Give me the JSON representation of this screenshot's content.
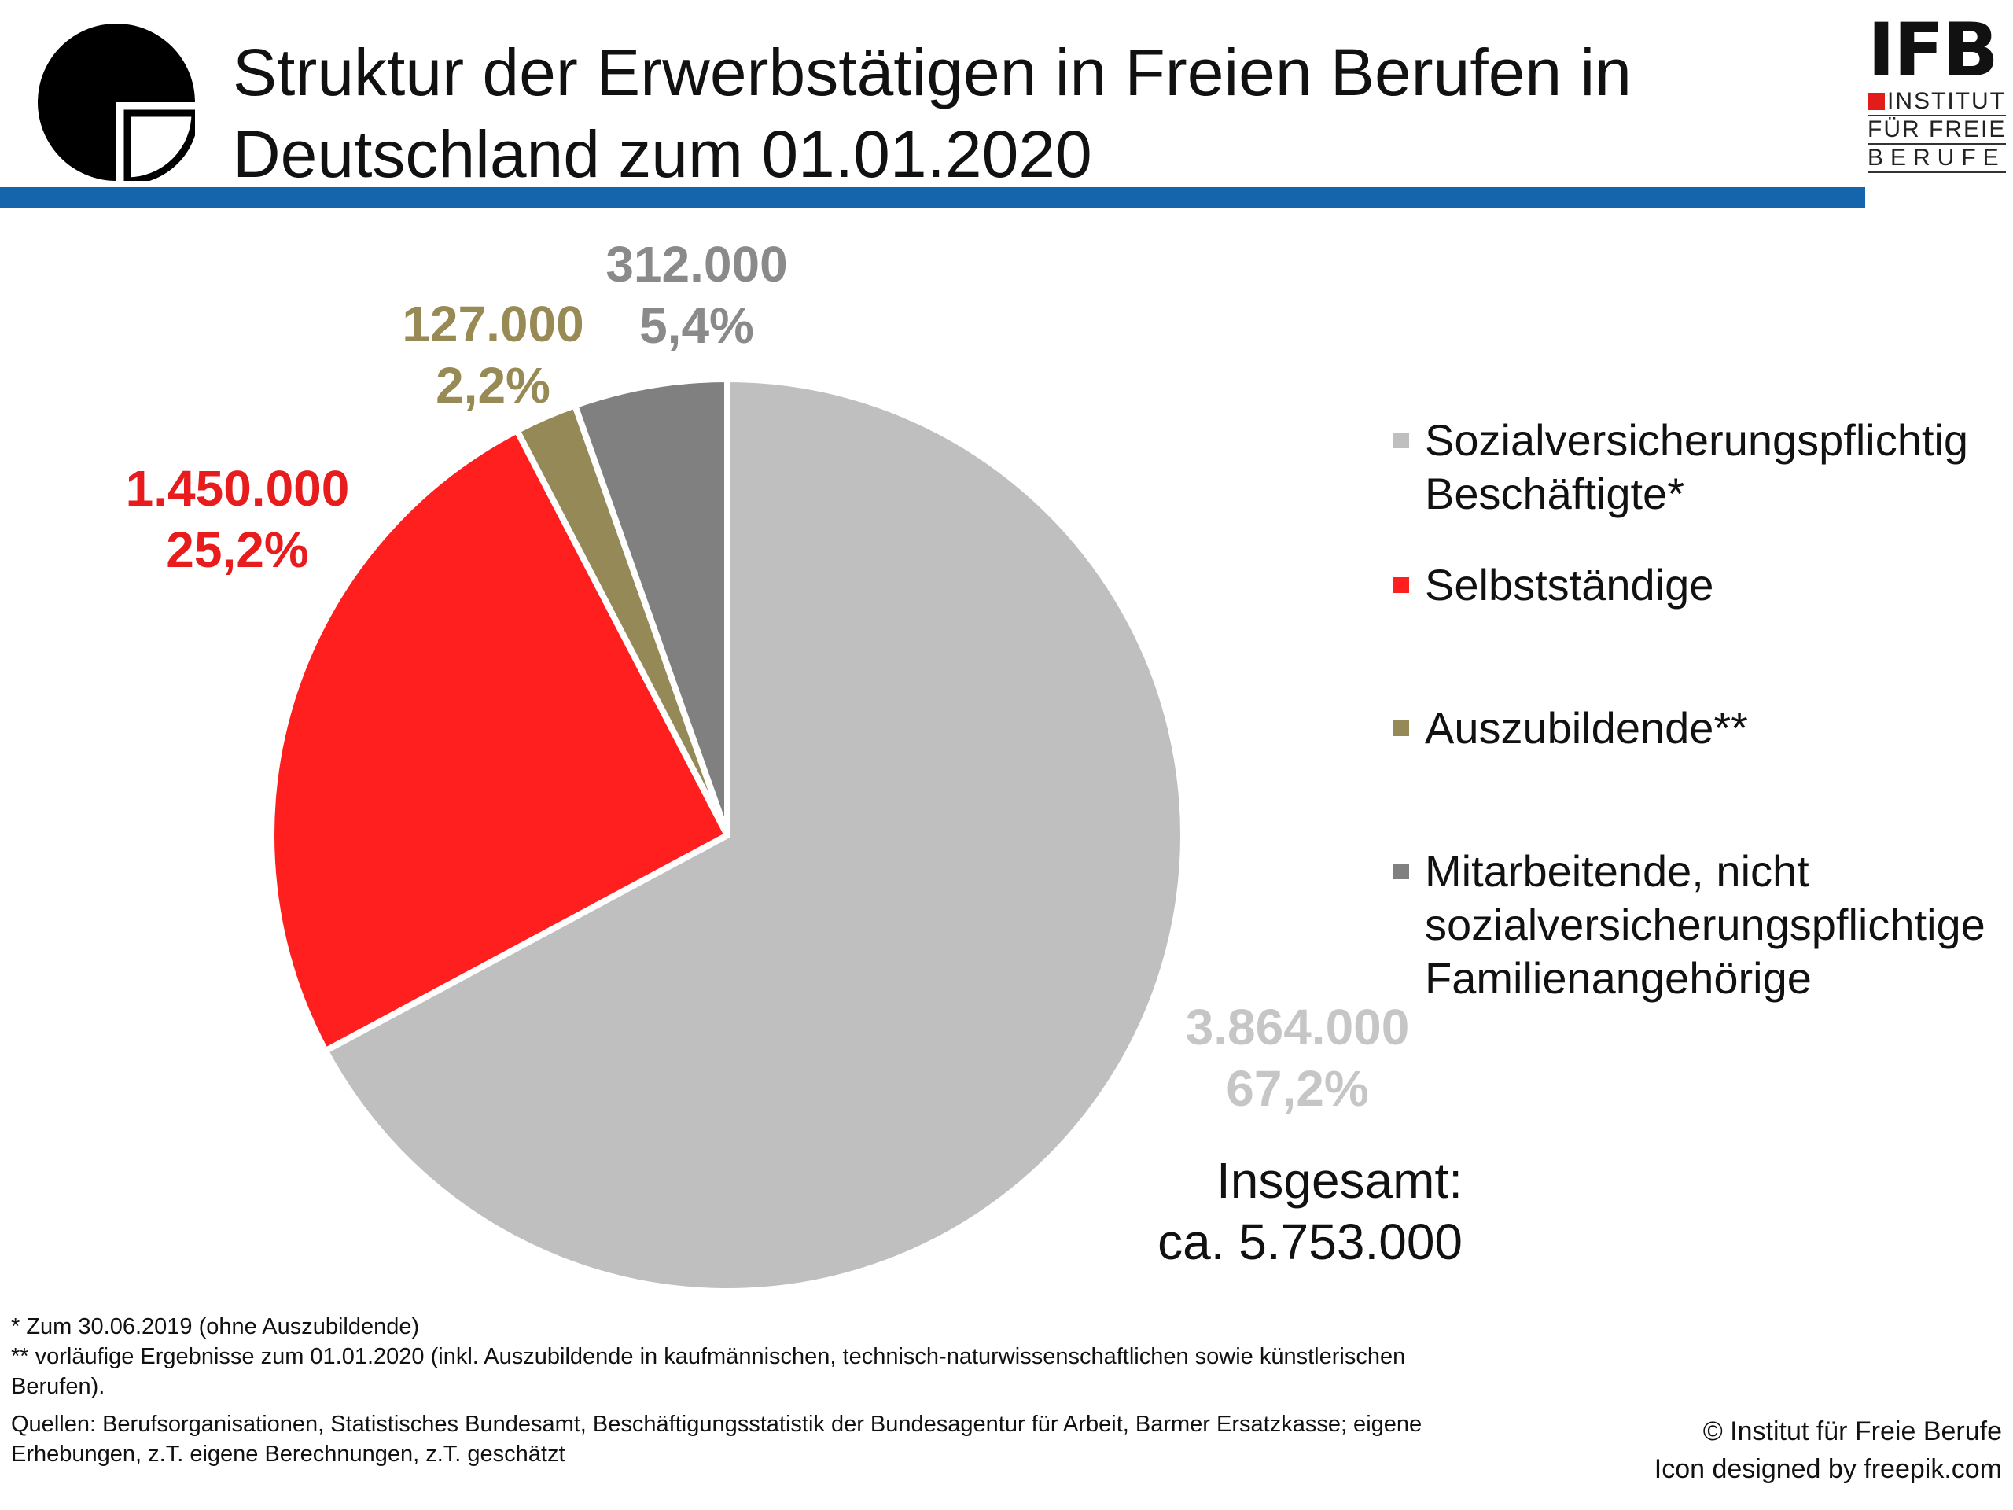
{
  "header": {
    "title_line1": "Struktur der Erwerbstätigen in Freien Berufen in",
    "title_line2": "Deutschland zum 01.01.2020",
    "logo_icon": "pie-chart-icon",
    "accent_color": "#1565ad"
  },
  "ifb_logo": {
    "word": "IFB",
    "line1": "INSTITUT",
    "line2": "FÜR FREIE",
    "line3": "BERUFE",
    "red_square_color": "#e21b1b"
  },
  "chart_data": {
    "type": "pie",
    "title": "Struktur der Erwerbstätigen in Freien Berufen in Deutschland zum 01.01.2020",
    "start_angle_deg": 0,
    "direction": "clockwise",
    "legend_position": "right",
    "slices": [
      {
        "label": "Sozialversicherungspflichtig Beschäftigte*",
        "value": 3864000,
        "value_text": "3.864.000",
        "percent": 67.2,
        "percent_text": "67,2%",
        "color": "#bfbfbf",
        "label_color": "#c6c6c6"
      },
      {
        "label": "Selbstständige",
        "value": 1450000,
        "value_text": "1.450.000",
        "percent": 25.2,
        "percent_text": "25,2%",
        "color": "#ff1f1f",
        "label_color": "#e81c1c"
      },
      {
        "label": "Auszubildende**",
        "value": 127000,
        "value_text": "127.000",
        "percent": 2.2,
        "percent_text": "2,2%",
        "color": "#958a57",
        "label_color": "#978a55"
      },
      {
        "label": "Mitarbeitende, nicht sozialversicherungspflichtige Familienangehörige",
        "value": 312000,
        "value_text": "312.000",
        "percent": 5.4,
        "percent_text": "5,4%",
        "color": "#808080",
        "label_color": "#8a8a8a"
      }
    ]
  },
  "legend": {
    "items": [
      {
        "label": "Sozialversicherungspflichtig\nBeschäftigte*",
        "color": "#bfbfbf"
      },
      {
        "label": "Selbstständige",
        "color": "#ff1f1f"
      },
      {
        "label": "Auszubildende**",
        "color": "#958a57"
      },
      {
        "label": "Mitarbeitende, nicht\nsozialversicherungspflichtige\nFamilienangehörige",
        "color": "#808080"
      }
    ]
  },
  "total": {
    "label": "Insgesamt:",
    "value": "ca. 5.753.000"
  },
  "footnotes": {
    "note1": "* Zum 30.06.2019 (ohne Auszubildende)",
    "note2": "** vorläufige Ergebnisse zum 01.01.2020 (inkl. Auszubildende in kaufmännischen, technisch-naturwissenschaftlichen sowie künstlerischen Berufen).",
    "sources_label": "Quellen",
    "sources_text": ": Berufsorganisationen, Statistisches Bundesamt, Beschäftigungsstatistik der Bundesagentur für Arbeit, Barmer Ersatzkasse; eigene Erhebungen, z.T. eigene Berechnungen, z.T. geschätzt"
  },
  "credits": {
    "copyright": "© Institut für Freie Berufe",
    "icon_word": "Icon",
    "icon_text": " designed by freepik.com"
  }
}
